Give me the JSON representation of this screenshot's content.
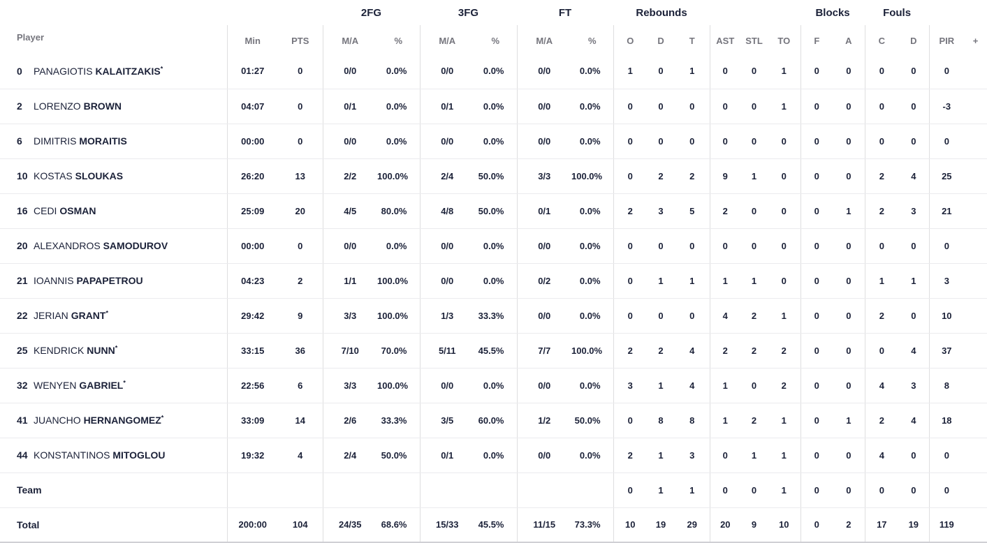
{
  "colors": {
    "text_dark": "#1b2138",
    "header_grey": "#75757d",
    "divider": "#dededf",
    "row_line": "#ebebee",
    "bottom_line": "#cfcfd4"
  },
  "table": {
    "player_header": "Player",
    "group_headers": [
      "2FG",
      "3FG",
      "FT",
      "Rebounds",
      "Blocks",
      "Fouls"
    ],
    "column_headers": [
      "Min",
      "PTS",
      "M/A",
      "%",
      "M/A",
      "%",
      "M/A",
      "%",
      "O",
      "D",
      "T",
      "AST",
      "STL",
      "TO",
      "F",
      "A",
      "C",
      "D",
      "PIR",
      "+"
    ],
    "players": [
      {
        "number": "0",
        "first_name": "PANAGIOTIS",
        "last_name": "KALAITZAKIS",
        "starter": true,
        "stats": [
          "01:27",
          "0",
          "0/0",
          "0.0%",
          "0/0",
          "0.0%",
          "0/0",
          "0.0%",
          "1",
          "0",
          "1",
          "0",
          "0",
          "1",
          "0",
          "0",
          "0",
          "0",
          "0",
          ""
        ]
      },
      {
        "number": "2",
        "first_name": "LORENZO",
        "last_name": "BROWN",
        "starter": false,
        "stats": [
          "04:07",
          "0",
          "0/1",
          "0.0%",
          "0/1",
          "0.0%",
          "0/0",
          "0.0%",
          "0",
          "0",
          "0",
          "0",
          "0",
          "1",
          "0",
          "0",
          "0",
          "0",
          "-3",
          ""
        ]
      },
      {
        "number": "6",
        "first_name": "DIMITRIS",
        "last_name": "MORAITIS",
        "starter": false,
        "stats": [
          "00:00",
          "0",
          "0/0",
          "0.0%",
          "0/0",
          "0.0%",
          "0/0",
          "0.0%",
          "0",
          "0",
          "0",
          "0",
          "0",
          "0",
          "0",
          "0",
          "0",
          "0",
          "0",
          ""
        ]
      },
      {
        "number": "10",
        "first_name": "KOSTAS",
        "last_name": "SLOUKAS",
        "starter": false,
        "stats": [
          "26:20",
          "13",
          "2/2",
          "100.0%",
          "2/4",
          "50.0%",
          "3/3",
          "100.0%",
          "0",
          "2",
          "2",
          "9",
          "1",
          "0",
          "0",
          "0",
          "2",
          "4",
          "25",
          ""
        ]
      },
      {
        "number": "16",
        "first_name": "CEDI",
        "last_name": "OSMAN",
        "starter": false,
        "stats": [
          "25:09",
          "20",
          "4/5",
          "80.0%",
          "4/8",
          "50.0%",
          "0/1",
          "0.0%",
          "2",
          "3",
          "5",
          "2",
          "0",
          "0",
          "0",
          "1",
          "2",
          "3",
          "21",
          ""
        ]
      },
      {
        "number": "20",
        "first_name": "ALEXANDROS",
        "last_name": "SAMODUROV",
        "starter": false,
        "stats": [
          "00:00",
          "0",
          "0/0",
          "0.0%",
          "0/0",
          "0.0%",
          "0/0",
          "0.0%",
          "0",
          "0",
          "0",
          "0",
          "0",
          "0",
          "0",
          "0",
          "0",
          "0",
          "0",
          ""
        ]
      },
      {
        "number": "21",
        "first_name": "IOANNIS",
        "last_name": "PAPAPETROU",
        "starter": false,
        "stats": [
          "04:23",
          "2",
          "1/1",
          "100.0%",
          "0/0",
          "0.0%",
          "0/2",
          "0.0%",
          "0",
          "1",
          "1",
          "1",
          "1",
          "0",
          "0",
          "0",
          "1",
          "1",
          "3",
          ""
        ]
      },
      {
        "number": "22",
        "first_name": "JERIAN",
        "last_name": "GRANT",
        "starter": true,
        "stats": [
          "29:42",
          "9",
          "3/3",
          "100.0%",
          "1/3",
          "33.3%",
          "0/0",
          "0.0%",
          "0",
          "0",
          "0",
          "4",
          "2",
          "1",
          "0",
          "0",
          "2",
          "0",
          "10",
          ""
        ]
      },
      {
        "number": "25",
        "first_name": "KENDRICK",
        "last_name": "NUNN",
        "starter": true,
        "stats": [
          "33:15",
          "36",
          "7/10",
          "70.0%",
          "5/11",
          "45.5%",
          "7/7",
          "100.0%",
          "2",
          "2",
          "4",
          "2",
          "2",
          "2",
          "0",
          "0",
          "0",
          "4",
          "37",
          ""
        ]
      },
      {
        "number": "32",
        "first_name": "WENYEN",
        "last_name": "GABRIEL",
        "starter": true,
        "stats": [
          "22:56",
          "6",
          "3/3",
          "100.0%",
          "0/0",
          "0.0%",
          "0/0",
          "0.0%",
          "3",
          "1",
          "4",
          "1",
          "0",
          "2",
          "0",
          "0",
          "4",
          "3",
          "8",
          ""
        ]
      },
      {
        "number": "41",
        "first_name": "JUANCHO",
        "last_name": "HERNANGOMEZ",
        "starter": true,
        "stats": [
          "33:09",
          "14",
          "2/6",
          "33.3%",
          "3/5",
          "60.0%",
          "1/2",
          "50.0%",
          "0",
          "8",
          "8",
          "1",
          "2",
          "1",
          "0",
          "1",
          "2",
          "4",
          "18",
          ""
        ]
      },
      {
        "number": "44",
        "first_name": "KONSTANTINOS",
        "last_name": "MITOGLOU",
        "starter": false,
        "stats": [
          "19:32",
          "4",
          "2/4",
          "50.0%",
          "0/1",
          "0.0%",
          "0/0",
          "0.0%",
          "2",
          "1",
          "3",
          "0",
          "1",
          "1",
          "0",
          "0",
          "4",
          "0",
          "0",
          ""
        ]
      }
    ],
    "team": {
      "label": "Team",
      "stats": [
        "",
        "",
        "",
        "",
        "",
        "",
        "",
        "",
        "0",
        "1",
        "1",
        "0",
        "0",
        "1",
        "0",
        "0",
        "0",
        "0",
        "0",
        ""
      ]
    },
    "total": {
      "label": "Total",
      "stats": [
        "200:00",
        "104",
        "24/35",
        "68.6%",
        "15/33",
        "45.5%",
        "11/15",
        "73.3%",
        "10",
        "19",
        "29",
        "20",
        "9",
        "10",
        "0",
        "2",
        "17",
        "19",
        "119",
        ""
      ]
    }
  }
}
